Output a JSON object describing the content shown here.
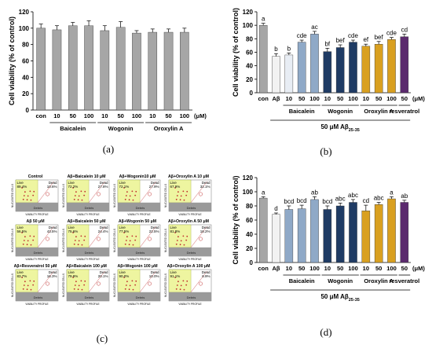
{
  "panels": {
    "a": {
      "label": "(a)",
      "chart_data": {
        "type": "bar",
        "ylabel": "Cell viability (% of control)",
        "ylim": [
          0,
          120
        ],
        "yticks": [
          0,
          20,
          40,
          60,
          80,
          100,
          120
        ],
        "categories": [
          "con",
          "10",
          "50",
          "100",
          "10",
          "50",
          "100",
          "10",
          "50",
          "100"
        ],
        "values": [
          100,
          98,
          103,
          103,
          97,
          101,
          94,
          95,
          95,
          95
        ],
        "errors": [
          5,
          5,
          4,
          6,
          6,
          7,
          3,
          4,
          4,
          5
        ],
        "colors": [
          "#a6a6a6",
          "#a6a6a6",
          "#a6a6a6",
          "#a6a6a6",
          "#a6a6a6",
          "#a6a6a6",
          "#a6a6a6",
          "#a6a6a6",
          "#a6a6a6",
          "#a6a6a6"
        ],
        "unit_label": "(μM)",
        "groups": [
          {
            "label": "Baicalein",
            "start": 1,
            "end": 3
          },
          {
            "label": "Wogonin",
            "start": 4,
            "end": 6
          },
          {
            "label": "Oroxylin A",
            "start": 7,
            "end": 9
          }
        ]
      }
    },
    "b": {
      "label": "(b)",
      "chart_data": {
        "type": "bar",
        "ylabel": "Cell viability (% of control)",
        "ylim": [
          0,
          120
        ],
        "yticks": [
          0,
          20,
          40,
          60,
          80,
          100,
          120
        ],
        "categories": [
          "con",
          "Aβ",
          "10",
          "50",
          "100",
          "10",
          "50",
          "100",
          "10",
          "50",
          "100",
          "50"
        ],
        "values": [
          100,
          54,
          56,
          75,
          87,
          61,
          67,
          75,
          69,
          72,
          79,
          83
        ],
        "errors": [
          3,
          4,
          3,
          3,
          4,
          5,
          4,
          3,
          3,
          4,
          3,
          4
        ],
        "letters": [
          "a",
          "b",
          "b",
          "cde",
          "ac",
          "bf",
          "bef",
          "cde",
          "ef",
          "bef",
          "cde",
          "cd"
        ],
        "colors": [
          "#a6a6a6",
          "#f2f2f2",
          "#e8edf4",
          "#8fa9c7",
          "#8fa9c7",
          "#1f3b64",
          "#1f3b64",
          "#1f3b64",
          "#d9a020",
          "#d9a020",
          "#d9a020",
          "#5b2a6e"
        ],
        "unit_label": "(μM)",
        "groups": [
          {
            "label": "Baicalein",
            "start": 2,
            "end": 4
          },
          {
            "label": "Wogonin",
            "start": 5,
            "end": 7
          },
          {
            "label": "Oroxylin A",
            "start": 8,
            "end": 10
          },
          {
            "label": "resveratrol",
            "start": 11,
            "end": 11
          }
        ],
        "treatment_label": "50 μM Aβ",
        "treatment_sub": "25-35"
      }
    },
    "c": {
      "label": "(c)",
      "cells": [
        {
          "title": "Control",
          "live": "89.4%",
          "dead": "10.6%"
        },
        {
          "title": "Aβ+Baicalein 10 μM",
          "live": "72.2%",
          "dead": "27.8%"
        },
        {
          "title": "Aβ+Wogonin10 μM",
          "live": "72.1%",
          "dead": "27.9%"
        },
        {
          "title": "Aβ+Oroxylin A 10 μM",
          "live": "67.9%",
          "dead": "32.1%"
        },
        {
          "title": "Aβ 50 μM",
          "live": "56.5%",
          "dead": "43.5%"
        },
        {
          "title": "Aβ+Baicalein 50 μM",
          "live": "75.6%",
          "dead": "24.4%"
        },
        {
          "title": "Aβ+Wogonin 50 μM",
          "live": "77.5%",
          "dead": "22.5%"
        },
        {
          "title": "Aβ+Oroxylin A 50 μM",
          "live": "81.8%",
          "dead": "18.2%"
        },
        {
          "title": "Aβ+Resveratrol 50 μM",
          "live": "83.7%",
          "dead": "16.3%"
        },
        {
          "title": "Aβ+Baicalein 100 μM",
          "live": "79.9%",
          "dead": "20.1%"
        },
        {
          "title": "Aβ+Wogonin 100 μM",
          "live": "90.0%",
          "dead": "10.0%"
        },
        {
          "title": "Aβ+Oroxylin A 100 μM",
          "live": "91.1%",
          "dead": "8.9%"
        }
      ],
      "live_word": "Live",
      "dead_word": "Dead",
      "debris_word": "Debris",
      "axis_y": "NUCLEATED CELLS",
      "axis_x": "VIABILITY PROFILE"
    },
    "d": {
      "label": "(d)",
      "chart_data": {
        "type": "bar",
        "ylabel": "Cell viability (% of control)",
        "ylim": [
          0,
          120
        ],
        "yticks": [
          0,
          20,
          40,
          60,
          80,
          100,
          120
        ],
        "categories": [
          "con",
          "Aβ",
          "10",
          "50",
          "100",
          "10",
          "50",
          "100",
          "10",
          "50",
          "100",
          "50"
        ],
        "values": [
          91,
          68,
          75,
          76,
          89,
          75,
          80,
          85,
          73,
          82,
          90,
          85
        ],
        "errors": [
          2,
          2,
          5,
          5,
          4,
          5,
          4,
          4,
          8,
          3,
          3,
          3
        ],
        "letters": [
          "a",
          "d",
          "bcd",
          "bcd",
          "ab",
          "bcd",
          "abc",
          "abc",
          "cd",
          "abc",
          "a",
          "ab"
        ],
        "colors": [
          "#a6a6a6",
          "#f2f2f2",
          "#8fa9c7",
          "#8fa9c7",
          "#8fa9c7",
          "#1f3b64",
          "#1f3b64",
          "#1f3b64",
          "#d9a020",
          "#d9a020",
          "#d9a020",
          "#5b2a6e"
        ],
        "unit_label": "(μM)",
        "groups": [
          {
            "label": "Baicalein",
            "start": 2,
            "end": 4
          },
          {
            "label": "Wogonin",
            "start": 5,
            "end": 7
          },
          {
            "label": "Oroxylin A",
            "start": 8,
            "end": 10
          },
          {
            "label": "resveratrol",
            "start": 11,
            "end": 11
          }
        ],
        "treatment_label": "50 μM Aβ",
        "treatment_sub": "25-35"
      }
    }
  }
}
